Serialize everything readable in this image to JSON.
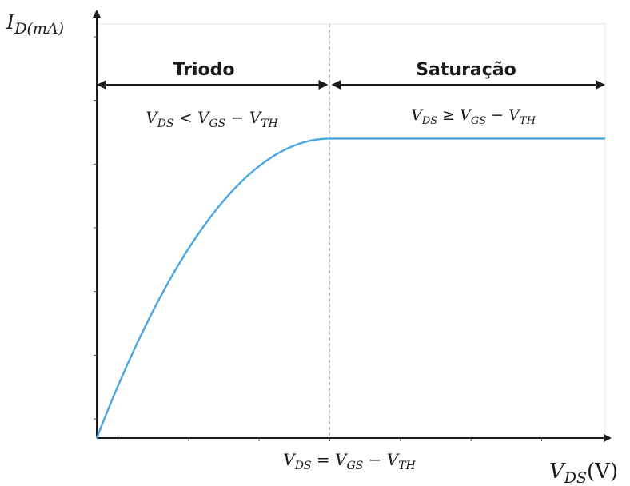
{
  "chart_data": {
    "type": "line",
    "y_axis_label": {
      "main": "I",
      "sub": "D(mA)"
    },
    "x_axis_label": {
      "main": "V",
      "sub": "DS",
      "tail": "(V)"
    },
    "boundary_label": {
      "lhs": "V",
      "lhs_sub": "DS",
      "op": " = ",
      "mid": "V",
      "mid_sub": "GS",
      "minus": " − ",
      "rhs": "V",
      "rhs_sub": "TH"
    },
    "regions": [
      {
        "name": "Triodo",
        "condition": {
          "lhs": "V",
          "lhs_sub": "DS",
          "op": " < ",
          "mid": "V",
          "mid_sub": "GS",
          "minus": " − ",
          "rhs": "V",
          "rhs_sub": "TH"
        }
      },
      {
        "name": "Saturação",
        "condition": {
          "lhs": "V",
          "lhs_sub": "DS",
          "op": " ≥ ",
          "mid": "V",
          "mid_sub": "GS",
          "minus": " − ",
          "rhs": "V",
          "rhs_sub": "TH"
        }
      }
    ],
    "xlim": [
      0,
      7.2
    ],
    "ylim": [
      0,
      6.5
    ],
    "x_ticks": [
      0.3,
      1.3,
      2.3,
      3.3,
      4.3,
      5.3,
      6.3
    ],
    "y_ticks": [
      0.3,
      1.3,
      2.3,
      3.3,
      4.3,
      5.3,
      6.3
    ],
    "boundary_x": 3.3,
    "series": [
      {
        "x": [
          0,
          0.55,
          1.1,
          1.65,
          2.2,
          2.75,
          3.3,
          7.2
        ],
        "y": [
          0,
          1.68,
          2.94,
          3.78,
          4.34,
          4.62,
          4.7,
          4.7
        ]
      }
    ],
    "colors": {
      "curve": "#4aa6e2",
      "axis": "#1a1a1a",
      "boundary": "#9bbfd8"
    }
  }
}
